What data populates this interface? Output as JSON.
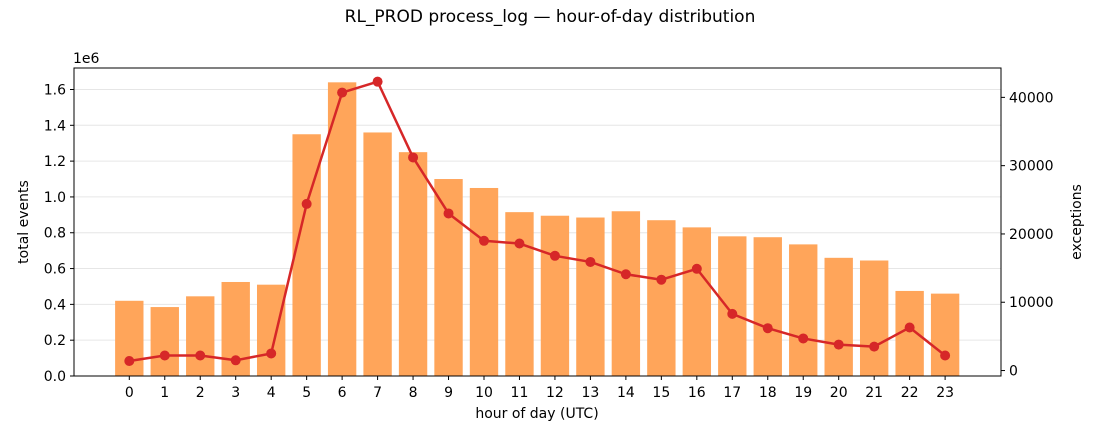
{
  "chart_data": {
    "type": "bar",
    "title": "RL_PROD process_log — hour-of-day distribution",
    "xlabel": "hour of day (UTC)",
    "ylabel": "total events",
    "y2label": "exceptions",
    "y_multiplier": "1e6",
    "categories": [
      "0",
      "1",
      "2",
      "3",
      "4",
      "5",
      "6",
      "7",
      "8",
      "9",
      "10",
      "11",
      "12",
      "13",
      "14",
      "15",
      "16",
      "17",
      "18",
      "19",
      "20",
      "21",
      "22",
      "23"
    ],
    "ylim": [
      0,
      1.72
    ],
    "y2lim": [
      -800,
      44300
    ],
    "yticks": [
      "0.0",
      "0.2",
      "0.4",
      "0.6",
      "0.8",
      "1.0",
      "1.2",
      "1.4",
      "1.6"
    ],
    "y2ticks": [
      "0",
      "10000",
      "20000",
      "30000",
      "40000"
    ],
    "grid": true,
    "series": [
      {
        "name": "total events",
        "kind": "bar",
        "axis": "left",
        "color": "#ffa55a",
        "values": [
          0.42,
          0.385,
          0.445,
          0.525,
          0.51,
          1.35,
          1.64,
          1.36,
          1.25,
          1.1,
          1.05,
          0.915,
          0.895,
          0.885,
          0.92,
          0.87,
          0.83,
          0.78,
          0.775,
          0.735,
          0.66,
          0.645,
          0.475,
          0.46
        ]
      },
      {
        "name": "exceptions",
        "kind": "line",
        "axis": "right",
        "color": "#d62728",
        "values": [
          1400,
          2200,
          2200,
          1500,
          2500,
          24400,
          40700,
          42300,
          31200,
          23000,
          19000,
          18600,
          16800,
          15900,
          14100,
          13300,
          14900,
          8300,
          6200,
          4700,
          3800,
          3500,
          6300,
          2200
        ]
      }
    ],
    "colors": {
      "left_axis_label": "#ff7f0e",
      "right_axis_label": "#d62728"
    }
  }
}
